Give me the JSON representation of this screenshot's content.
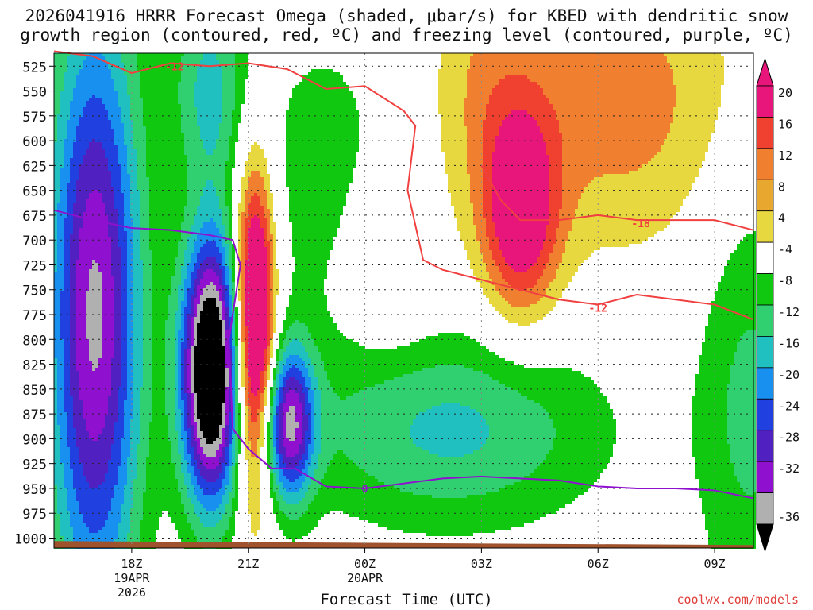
{
  "title_line1": "2026041916 HRRR Forecast Omega (shaded, μbar/s) for KBED with dendritic snow",
  "title_line2": "growth region (contoured, red, ºC) and freezing level (contoured, purple, ºC)",
  "credit": "coolwx.com/models",
  "chart_data": {
    "type": "heatmap",
    "xlabel": "Forecast Time (UTC)",
    "ylabel": "",
    "y_axis": "pressure (mb), inverted",
    "ylim": [
      1010,
      512
    ],
    "xlim": [
      16,
      34
    ],
    "y_ticks": [
      525,
      550,
      575,
      600,
      625,
      650,
      675,
      700,
      725,
      750,
      775,
      800,
      825,
      850,
      875,
      900,
      925,
      950,
      975,
      1000
    ],
    "x_ticks": [
      {
        "x": 18,
        "lines": [
          "18Z",
          "19APR",
          "2026"
        ]
      },
      {
        "x": 21,
        "lines": [
          "21Z"
        ]
      },
      {
        "x": 24,
        "lines": [
          "00Z",
          "20APR"
        ]
      },
      {
        "x": 27,
        "lines": [
          "03Z"
        ]
      },
      {
        "x": 30,
        "lines": [
          "06Z"
        ]
      },
      {
        "x": 33,
        "lines": [
          "09Z"
        ]
      }
    ],
    "grid": true,
    "colorbar": {
      "labels": [
        "20",
        "16",
        "12",
        "8",
        "4",
        "-4",
        "-8",
        "-12",
        "-16",
        "-20",
        "-24",
        "-28",
        "-32",
        "-36"
      ],
      "colors": [
        "#e8157a",
        "#f04030",
        "#f08030",
        "#e8a830",
        "#e8d840",
        "#ffffff",
        "#10c810",
        "#30d070",
        "#20c0c0",
        "#1890f0",
        "#2040e0",
        "#5020c0",
        "#9010d0",
        "#b0b0b0"
      ],
      "top_triangle": "#e8157a",
      "bottom_triangle": "#000000"
    },
    "omega_blobs": [
      {
        "x": 17.05,
        "p": 775,
        "sx": 0.85,
        "sy": 220,
        "amp": -33
      },
      {
        "x": 20.05,
        "p": 830,
        "sx": 0.55,
        "sy": 95,
        "amp": -48
      },
      {
        "x": 21.15,
        "p": 790,
        "sx": 0.38,
        "sy": 115,
        "amp": 34
      },
      {
        "x": 22.05,
        "p": 885,
        "sx": 0.45,
        "sy": 55,
        "amp": -30
      },
      {
        "x": 26.2,
        "p": 890,
        "sx": 2.8,
        "sy": 70,
        "amp": -13
      },
      {
        "x": 28.0,
        "p": 675,
        "sx": 0.7,
        "sy": 75,
        "amp": 20
      },
      {
        "x": 30.5,
        "p": 560,
        "sx": 2.5,
        "sy": 110,
        "amp": 10
      },
      {
        "x": 20.0,
        "p": 545,
        "sx": 0.7,
        "sy": 70,
        "amp": -13
      },
      {
        "x": 23.0,
        "p": 640,
        "sx": 1.3,
        "sy": 110,
        "amp": -7
      },
      {
        "x": 24.5,
        "p": 720,
        "sx": 0.9,
        "sy": 70,
        "amp": 6
      },
      {
        "x": 27.0,
        "p": 540,
        "sx": 0.9,
        "sy": 90,
        "amp": 5
      },
      {
        "x": 33.9,
        "p": 860,
        "sx": 1.0,
        "sy": 180,
        "amp": -9
      }
    ],
    "series": [
      {
        "name": "-12",
        "color": "#f04040",
        "x": [
          16,
          17,
          18,
          19,
          20,
          21,
          22,
          23,
          24,
          25,
          25.3,
          25.1,
          25.5,
          26,
          27,
          28,
          29,
          30,
          31,
          32,
          33,
          34
        ],
        "y": [
          510,
          515,
          532,
          522,
          525,
          522,
          528,
          548,
          545,
          570,
          585,
          650,
          720,
          730,
          740,
          750,
          760,
          765,
          755,
          760,
          765,
          780
        ]
      },
      {
        "name": "-18",
        "color": "#f04040",
        "x": [
          27,
          27.5,
          28,
          29,
          30,
          31,
          32,
          33,
          34
        ],
        "y": [
          625,
          660,
          680,
          680,
          675,
          680,
          680,
          680,
          690
        ]
      },
      {
        "name": "0",
        "color": "#9010d0",
        "x": [
          16,
          17,
          18,
          19,
          20,
          20.6,
          20.8,
          20.5,
          20.6,
          21,
          21.6,
          22.2,
          23,
          24,
          25,
          26,
          27,
          28,
          29,
          30,
          31,
          32,
          33,
          34
        ],
        "y": [
          670,
          680,
          688,
          690,
          695,
          700,
          725,
          800,
          890,
          910,
          930,
          930,
          948,
          950,
          945,
          940,
          938,
          940,
          942,
          948,
          950,
          950,
          952,
          960
        ]
      }
    ],
    "contour_labels": [
      {
        "text": "-12",
        "x": 19.1,
        "p": 525
      },
      {
        "text": "-18",
        "x": 31.1,
        "p": 683
      },
      {
        "text": "-12",
        "x": 30.0,
        "p": 768
      },
      {
        "text": "0",
        "x": 24.0,
        "p": 950
      }
    ]
  }
}
